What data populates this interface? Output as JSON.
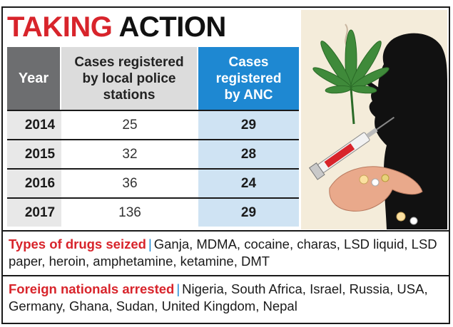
{
  "title": {
    "part1": "TAKING",
    "part2": "ACTION"
  },
  "table": {
    "headers": {
      "year": "Year",
      "local": [
        "Cases registered",
        "by local police",
        "stations"
      ],
      "anc": [
        "Cases",
        "registered",
        "by ANC"
      ]
    },
    "rows": [
      {
        "year": "2014",
        "local": "25",
        "anc": "29"
      },
      {
        "year": "2015",
        "local": "32",
        "anc": "28"
      },
      {
        "year": "2016",
        "local": "36",
        "anc": "24"
      },
      {
        "year": "2017",
        "local": "136",
        "anc": "29"
      }
    ]
  },
  "drugs": {
    "label": "Types of drugs seized",
    "separator": "|",
    "text": "Ganja, MDMA, cocaine, charas, LSD liquid, LSD paper, heroin, amphetamine, ketamine, DMT"
  },
  "foreigners": {
    "label": "Foreign nationals arrested",
    "separator": "|",
    "text": "Nigeria, South Africa, Israel, Russia, USA, Germany, Ghana, Sudan, United Kingdom, Nepal"
  },
  "colors": {
    "accent_red": "#d8242b",
    "accent_blue": "#1e88d2",
    "header_gray": "#6d6e70"
  },
  "illustration": {
    "icons": [
      "cannabis-leaf-icon",
      "smoker-silhouette-icon",
      "syringe-icon",
      "hand-with-pills-icon"
    ]
  }
}
